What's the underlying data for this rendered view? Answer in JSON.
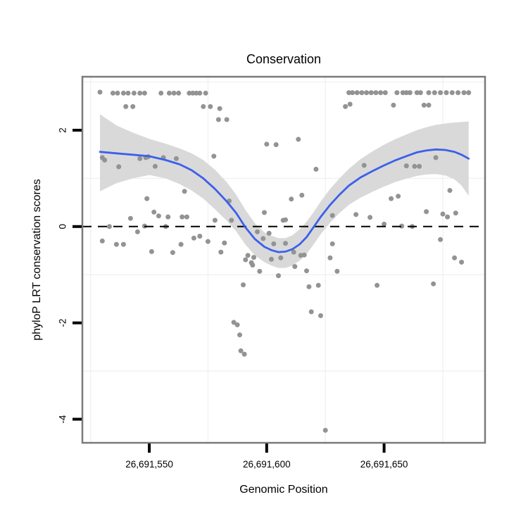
{
  "page": {
    "background": "#ffffff"
  },
  "chart": {
    "title": "Conservation",
    "xlabel": "Genomic Position",
    "ylabel": "phyloP LRT conservation scores"
  },
  "chart_data": {
    "type": "scatter",
    "title": "Conservation",
    "xlabel": "Genomic Position",
    "ylabel": "phyloP LRT conservation scores",
    "legend": "none",
    "grid": "faint minor gridlines only",
    "xlim": [
      26691521.5,
      26691693
    ],
    "ylim": [
      -4.49,
      3.11
    ],
    "x_ticks": [
      {
        "value": 26691550,
        "label": "26,691,550"
      },
      {
        "value": 26691600,
        "label": "26,691,600"
      },
      {
        "value": 26691650,
        "label": "26,691,650"
      }
    ],
    "y_ticks": [
      {
        "value": 2,
        "label": "2"
      },
      {
        "value": 0,
        "label": "0"
      },
      {
        "value": -2,
        "label": "-2"
      },
      {
        "value": -4,
        "label": "-4"
      }
    ],
    "x_gridlines": [
      26691525,
      26691575,
      26691625,
      26691675
    ],
    "y_gridlines": [
      3,
      1,
      -1,
      -3
    ],
    "reference_line_y": 0,
    "colors": {
      "point": "#939393",
      "smooth_line": "#3c60ea",
      "ci_ribbon": "#d9d9d9",
      "panel_border": "#7a7a7a",
      "gridline": "#f0f0f0",
      "reference_line": "#000000",
      "tick": "#000000"
    },
    "points": [
      [
        26691529,
        2.79
      ],
      [
        26691534.5,
        2.77
      ],
      [
        26691536.5,
        2.77
      ],
      [
        26691539,
        2.77
      ],
      [
        26691541,
        2.77
      ],
      [
        26691543.5,
        2.77
      ],
      [
        26691546,
        2.77
      ],
      [
        26691548,
        2.77
      ],
      [
        26691555,
        2.77
      ],
      [
        26691558.5,
        2.77
      ],
      [
        26691560.5,
        2.77
      ],
      [
        26691562.5,
        2.77
      ],
      [
        26691567,
        2.77
      ],
      [
        26691568.5,
        2.77
      ],
      [
        26691570,
        2.77
      ],
      [
        26691571.5,
        2.77
      ],
      [
        26691574,
        2.77
      ],
      [
        26691540,
        2.49
      ],
      [
        26691543,
        2.49
      ],
      [
        26691573,
        2.49
      ],
      [
        26691576,
        2.49
      ],
      [
        26691580,
        2.45
      ],
      [
        26691579.5,
        2.22
      ],
      [
        26691583,
        2.22
      ],
      [
        26691600,
        1.71
      ],
      [
        26691604,
        1.7
      ],
      [
        26691613.5,
        1.81
      ],
      [
        26691635,
        2.78
      ],
      [
        26691636.5,
        2.78
      ],
      [
        26691638.5,
        2.78
      ],
      [
        26691640.5,
        2.78
      ],
      [
        26691642.5,
        2.78
      ],
      [
        26691644.5,
        2.78
      ],
      [
        26691646.5,
        2.78
      ],
      [
        26691648.5,
        2.78
      ],
      [
        26691650.5,
        2.78
      ],
      [
        26691655.5,
        2.78
      ],
      [
        26691658,
        2.78
      ],
      [
        26691659.5,
        2.78
      ],
      [
        26691661,
        2.78
      ],
      [
        26691664,
        2.78
      ],
      [
        26691665.5,
        2.78
      ],
      [
        26691669,
        2.78
      ],
      [
        26691671.5,
        2.78
      ],
      [
        26691674,
        2.78
      ],
      [
        26691676.5,
        2.78
      ],
      [
        26691679,
        2.78
      ],
      [
        26691681.5,
        2.78
      ],
      [
        26691684,
        2.78
      ],
      [
        26691686,
        2.78
      ],
      [
        26691633.5,
        2.49
      ],
      [
        26691635.5,
        2.54
      ],
      [
        26691654,
        2.52
      ],
      [
        26691667,
        2.52
      ],
      [
        26691669,
        2.52
      ],
      [
        26691530,
        1.43
      ],
      [
        26691531,
        1.38
      ],
      [
        26691546,
        1.41
      ],
      [
        26691548.5,
        1.43
      ],
      [
        26691549.5,
        1.45
      ],
      [
        26691556,
        1.43
      ],
      [
        26691561.5,
        1.41
      ],
      [
        26691577.5,
        1.46
      ],
      [
        26691537,
        1.24
      ],
      [
        26691552.5,
        1.25
      ],
      [
        26691565,
        0.73
      ],
      [
        26691549,
        0.58
      ],
      [
        26691584,
        0.53
      ],
      [
        26691610.5,
        0.57
      ],
      [
        26691615,
        0.65
      ],
      [
        26691641.5,
        1.27
      ],
      [
        26691659.5,
        1.26
      ],
      [
        26691663,
        1.25
      ],
      [
        26691665,
        1.25
      ],
      [
        26691672,
        1.43
      ],
      [
        26691621,
        1.19
      ],
      [
        26691678,
        0.75
      ],
      [
        26691656,
        0.63
      ],
      [
        26691653,
        0.58
      ],
      [
        26691552,
        0.3
      ],
      [
        26691554,
        0.22
      ],
      [
        26691558,
        0.2
      ],
      [
        26691542,
        0.17
      ],
      [
        26691564,
        0.2
      ],
      [
        26691566,
        0.2
      ],
      [
        26691533,
        0.0
      ],
      [
        26691548,
        0.01
      ],
      [
        26691557,
        0.0
      ],
      [
        26691545,
        -0.11
      ],
      [
        26691530,
        -0.3
      ],
      [
        26691536,
        -0.37
      ],
      [
        26691539,
        -0.37
      ],
      [
        26691551,
        -0.52
      ],
      [
        26691560,
        -0.54
      ],
      [
        26691563.5,
        -0.37
      ],
      [
        26691569,
        -0.24
      ],
      [
        26691571.5,
        -0.2
      ],
      [
        26691575,
        -0.31
      ],
      [
        26691578,
        0.13
      ],
      [
        26691599,
        0.29
      ],
      [
        26691607,
        0.13
      ],
      [
        26691608,
        0.14
      ],
      [
        26691585,
        0.13
      ],
      [
        26691596,
        -0.11
      ],
      [
        26691601,
        -0.14
      ],
      [
        26691598.5,
        -0.25
      ],
      [
        26691603,
        -0.36
      ],
      [
        26691608,
        -0.35
      ],
      [
        26691582,
        -0.34
      ],
      [
        26691580.5,
        -0.53
      ],
      [
        26691592,
        -0.6
      ],
      [
        26691591,
        -0.69
      ],
      [
        26691594.5,
        -0.64
      ],
      [
        26691593.5,
        -0.75
      ],
      [
        26691594,
        -0.8
      ],
      [
        26691602,
        -0.68
      ],
      [
        26691606,
        -0.65
      ],
      [
        26691611.5,
        -0.53
      ],
      [
        26691614.5,
        -0.6
      ],
      [
        26691616,
        -0.59
      ],
      [
        26691612,
        -0.83
      ],
      [
        26691597,
        -0.93
      ],
      [
        26691605,
        -1.02
      ],
      [
        26691617,
        -0.92
      ],
      [
        26691590,
        -1.21
      ],
      [
        26691618,
        -1.25
      ],
      [
        26691622,
        -1.22
      ],
      [
        26691619,
        -1.77
      ],
      [
        26691623,
        -1.85
      ],
      [
        26691586,
        -1.99
      ],
      [
        26691628,
        0.23
      ],
      [
        26691628,
        -0.36
      ],
      [
        26691627,
        -0.65
      ],
      [
        26691630,
        -0.93
      ],
      [
        26691638,
        0.25
      ],
      [
        26691644,
        0.19
      ],
      [
        26691650,
        0.05
      ],
      [
        26691657.5,
        0.01
      ],
      [
        26691662,
        0.0
      ],
      [
        26691668,
        0.31
      ],
      [
        26691675,
        0.26
      ],
      [
        26691677,
        0.2
      ],
      [
        26691680.5,
        0.28
      ],
      [
        26691674,
        -0.27
      ],
      [
        26691680,
        -0.65
      ],
      [
        26691683,
        -0.74
      ],
      [
        26691647,
        -1.22
      ],
      [
        26691671,
        -1.19
      ],
      [
        26691587.5,
        -2.04
      ],
      [
        26691588.5,
        -2.25
      ],
      [
        26691589,
        -2.58
      ],
      [
        26691590.5,
        -2.65
      ],
      [
        26691625,
        -4.23
      ]
    ],
    "smooth_line": [
      [
        26691529,
        1.55
      ],
      [
        26691536,
        1.52
      ],
      [
        26691543,
        1.49
      ],
      [
        26691550,
        1.46
      ],
      [
        26691557,
        1.38
      ],
      [
        26691563,
        1.29
      ],
      [
        26691568,
        1.17
      ],
      [
        26691573,
        1.0
      ],
      [
        26691578,
        0.78
      ],
      [
        26691583,
        0.52
      ],
      [
        26691587,
        0.28
      ],
      [
        26691591,
        -0.02
      ],
      [
        26691595,
        -0.26
      ],
      [
        26691599,
        -0.42
      ],
      [
        26691602,
        -0.49
      ],
      [
        26691605,
        -0.53
      ],
      [
        26691608,
        -0.52
      ],
      [
        26691611,
        -0.47
      ],
      [
        26691614,
        -0.37
      ],
      [
        26691617,
        -0.22
      ],
      [
        26691620,
        -0.01
      ],
      [
        26691623,
        0.2
      ],
      [
        26691627,
        0.45
      ],
      [
        26691631,
        0.66
      ],
      [
        26691635,
        0.85
      ],
      [
        26691640,
        1.02
      ],
      [
        26691645,
        1.15
      ],
      [
        26691650,
        1.27
      ],
      [
        26691655,
        1.38
      ],
      [
        26691660,
        1.47
      ],
      [
        26691664,
        1.54
      ],
      [
        26691668,
        1.58
      ],
      [
        26691672,
        1.6
      ],
      [
        26691676,
        1.59
      ],
      [
        26691680,
        1.55
      ],
      [
        26691683,
        1.49
      ],
      [
        26691686,
        1.41
      ]
    ],
    "ci_ribbon": [
      [
        26691529,
        0.73,
        2.33
      ],
      [
        26691536,
        0.9,
        2.1
      ],
      [
        26691543,
        1.0,
        1.95
      ],
      [
        26691550,
        1.07,
        1.82
      ],
      [
        26691557,
        1.0,
        1.72
      ],
      [
        26691563,
        0.88,
        1.62
      ],
      [
        26691568,
        0.75,
        1.52
      ],
      [
        26691573,
        0.58,
        1.38
      ],
      [
        26691578,
        0.36,
        1.18
      ],
      [
        26691583,
        0.12,
        0.92
      ],
      [
        26691587,
        -0.1,
        0.66
      ],
      [
        26691591,
        -0.38,
        0.34
      ],
      [
        26691595,
        -0.6,
        0.07
      ],
      [
        26691599,
        -0.74,
        -0.12
      ],
      [
        26691602,
        -0.81,
        -0.19
      ],
      [
        26691605,
        -0.86,
        -0.24
      ],
      [
        26691608,
        -0.86,
        -0.24
      ],
      [
        26691611,
        -0.81,
        -0.18
      ],
      [
        26691614,
        -0.71,
        -0.06
      ],
      [
        26691617,
        -0.57,
        0.1
      ],
      [
        26691620,
        -0.37,
        0.3
      ],
      [
        26691623,
        -0.16,
        0.52
      ],
      [
        26691627,
        0.08,
        0.78
      ],
      [
        26691631,
        0.28,
        1.0
      ],
      [
        26691635,
        0.45,
        1.2
      ],
      [
        26691640,
        0.6,
        1.4
      ],
      [
        26691645,
        0.72,
        1.56
      ],
      [
        26691650,
        0.83,
        1.7
      ],
      [
        26691655,
        0.93,
        1.82
      ],
      [
        26691660,
        1.0,
        1.92
      ],
      [
        26691664,
        1.05,
        2.0
      ],
      [
        26691668,
        1.08,
        2.06
      ],
      [
        26691672,
        1.09,
        2.11
      ],
      [
        26691676,
        1.06,
        2.14
      ],
      [
        26691680,
        0.98,
        2.16
      ],
      [
        26691683,
        0.85,
        2.17
      ],
      [
        26691686,
        0.64,
        2.18
      ]
    ]
  }
}
